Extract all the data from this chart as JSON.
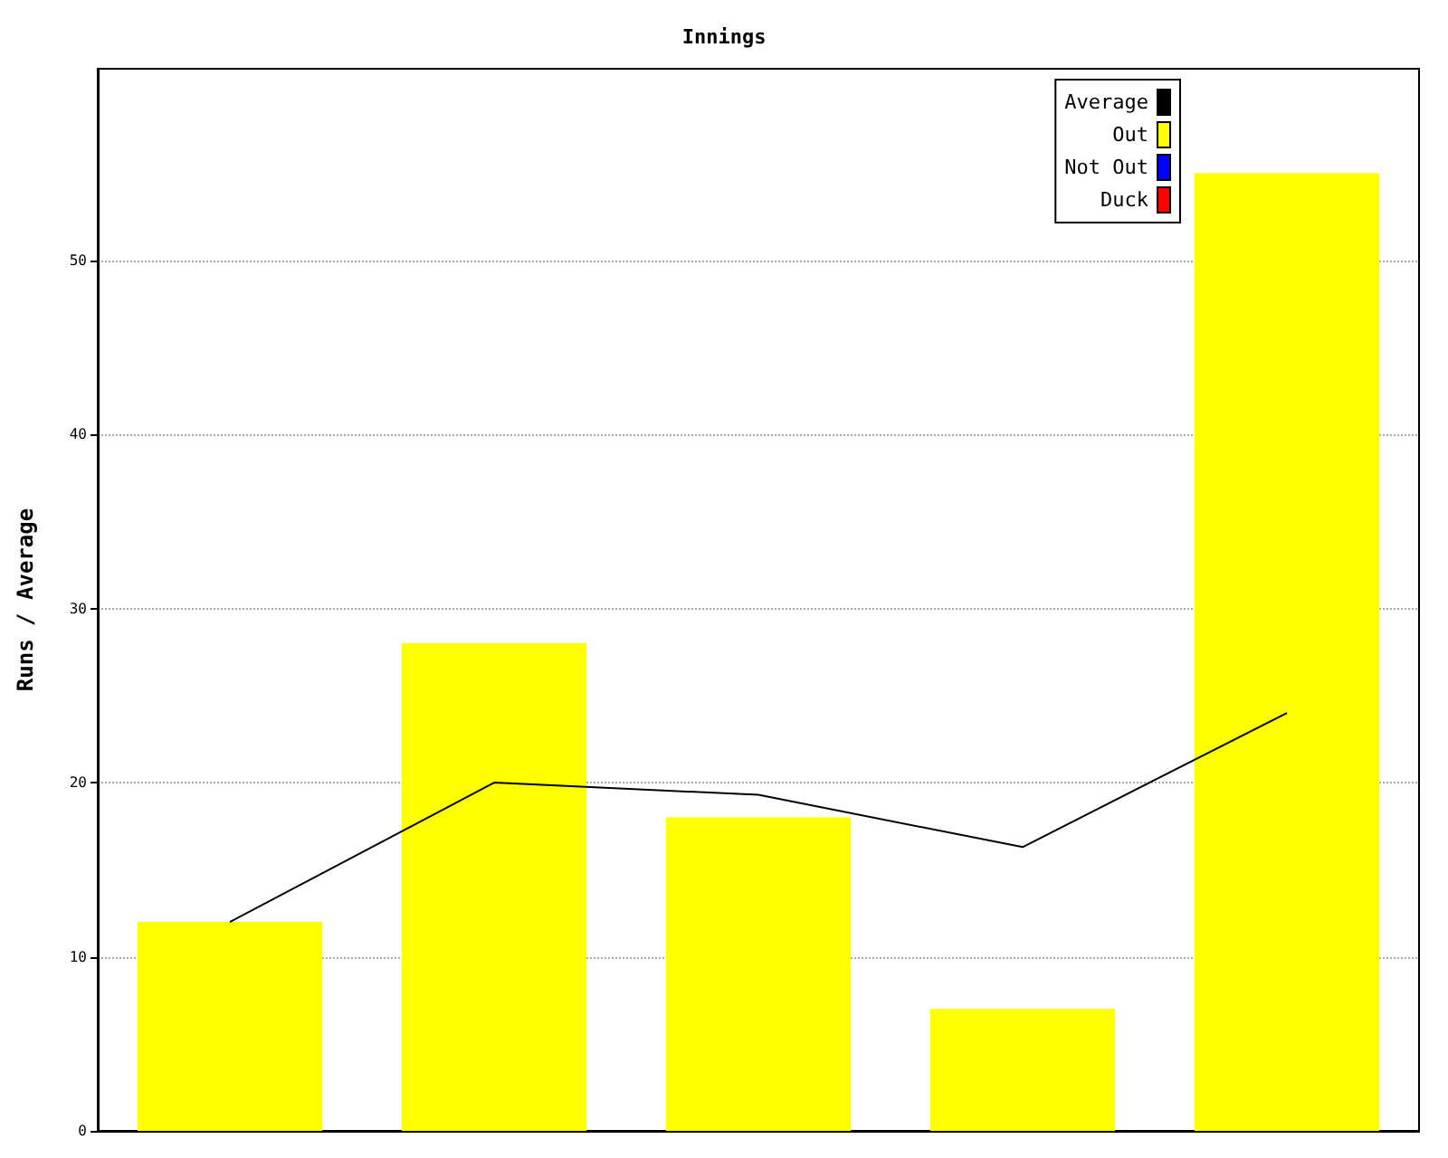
{
  "chart_data": {
    "type": "bar",
    "title": "Innings",
    "ylabel": "Runs / Average",
    "categories": [
      null,
      null,
      null,
      null,
      null
    ],
    "series": [
      {
        "name": "Average",
        "type": "line",
        "color": "#000000",
        "values": [
          12,
          20,
          19.3,
          16.3,
          24
        ]
      },
      {
        "name": "Out",
        "color": "#ffff00",
        "values": [
          12,
          28,
          18,
          7,
          55
        ]
      },
      {
        "name": "Not Out",
        "color": "#0000ff",
        "values": [
          null,
          null,
          null,
          null,
          null
        ]
      },
      {
        "name": "Duck",
        "color": "#ff0000",
        "values": [
          null,
          null,
          null,
          null,
          null
        ]
      }
    ],
    "ylim": [
      0,
      61
    ],
    "yticks": [
      0,
      10,
      20,
      30,
      40,
      50
    ],
    "grid": "y",
    "legend": "top right",
    "marker": "none",
    "line_style": "solid"
  }
}
